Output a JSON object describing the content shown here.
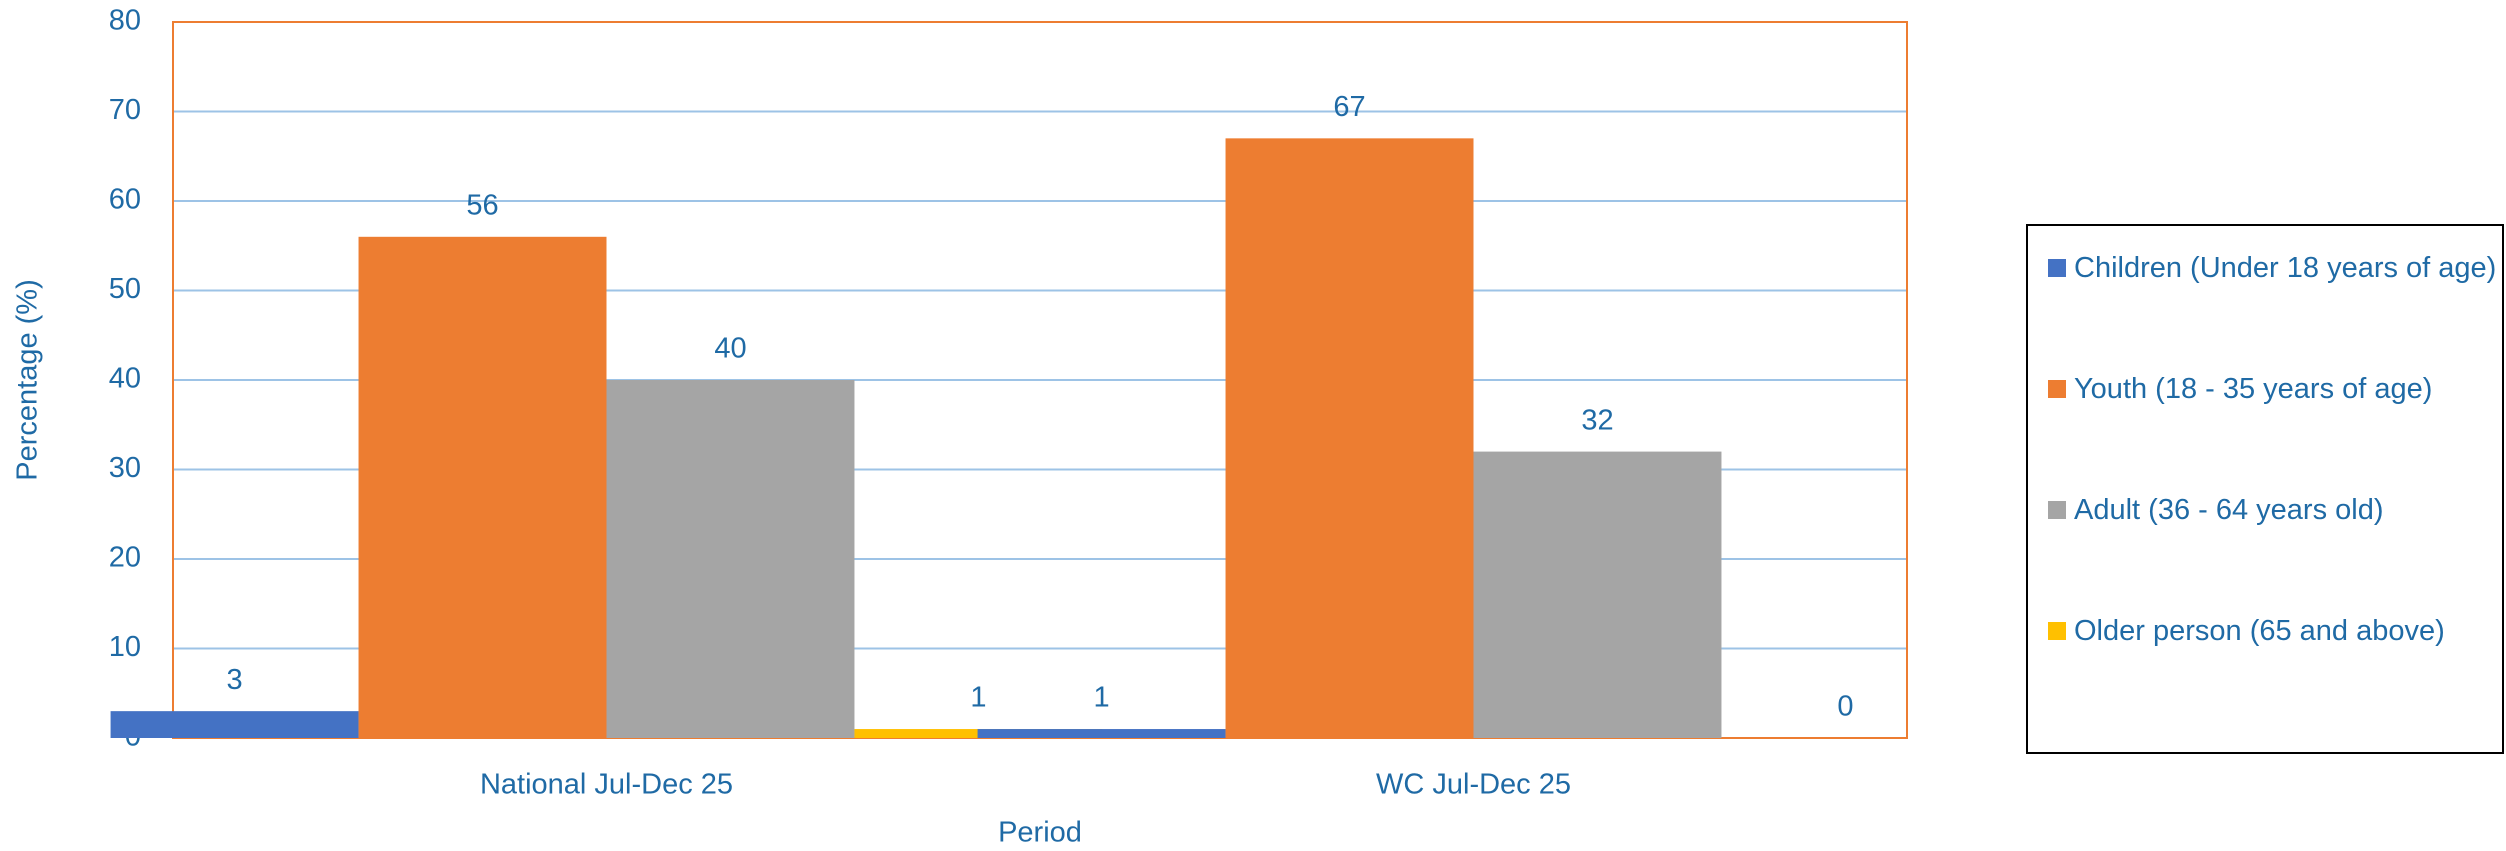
{
  "chart_data": {
    "type": "bar",
    "x_label": "Period",
    "y_label": "Percentage (%)",
    "categories": [
      "National Jul-Dec 25",
      "WC Jul-Dec 25"
    ],
    "series": [
      {
        "name": "Children (Under 18 years of age)",
        "color": "#4472c4",
        "values": [
          3,
          1
        ]
      },
      {
        "name": "Youth (18 - 35 years of age)",
        "color": "#ed7d31",
        "values": [
          56,
          67
        ]
      },
      {
        "name": "Adult (36 - 64 years old)",
        "color": "#a5a5a5",
        "values": [
          40,
          32
        ]
      },
      {
        "name": "Older person (65 and above)",
        "color": "#ffc000",
        "values": [
          1,
          0
        ]
      }
    ],
    "ylim": [
      0,
      80
    ],
    "yticks": [
      0,
      10,
      20,
      30,
      40,
      50,
      60,
      70,
      80
    ],
    "grid": true,
    "legend": "right"
  }
}
